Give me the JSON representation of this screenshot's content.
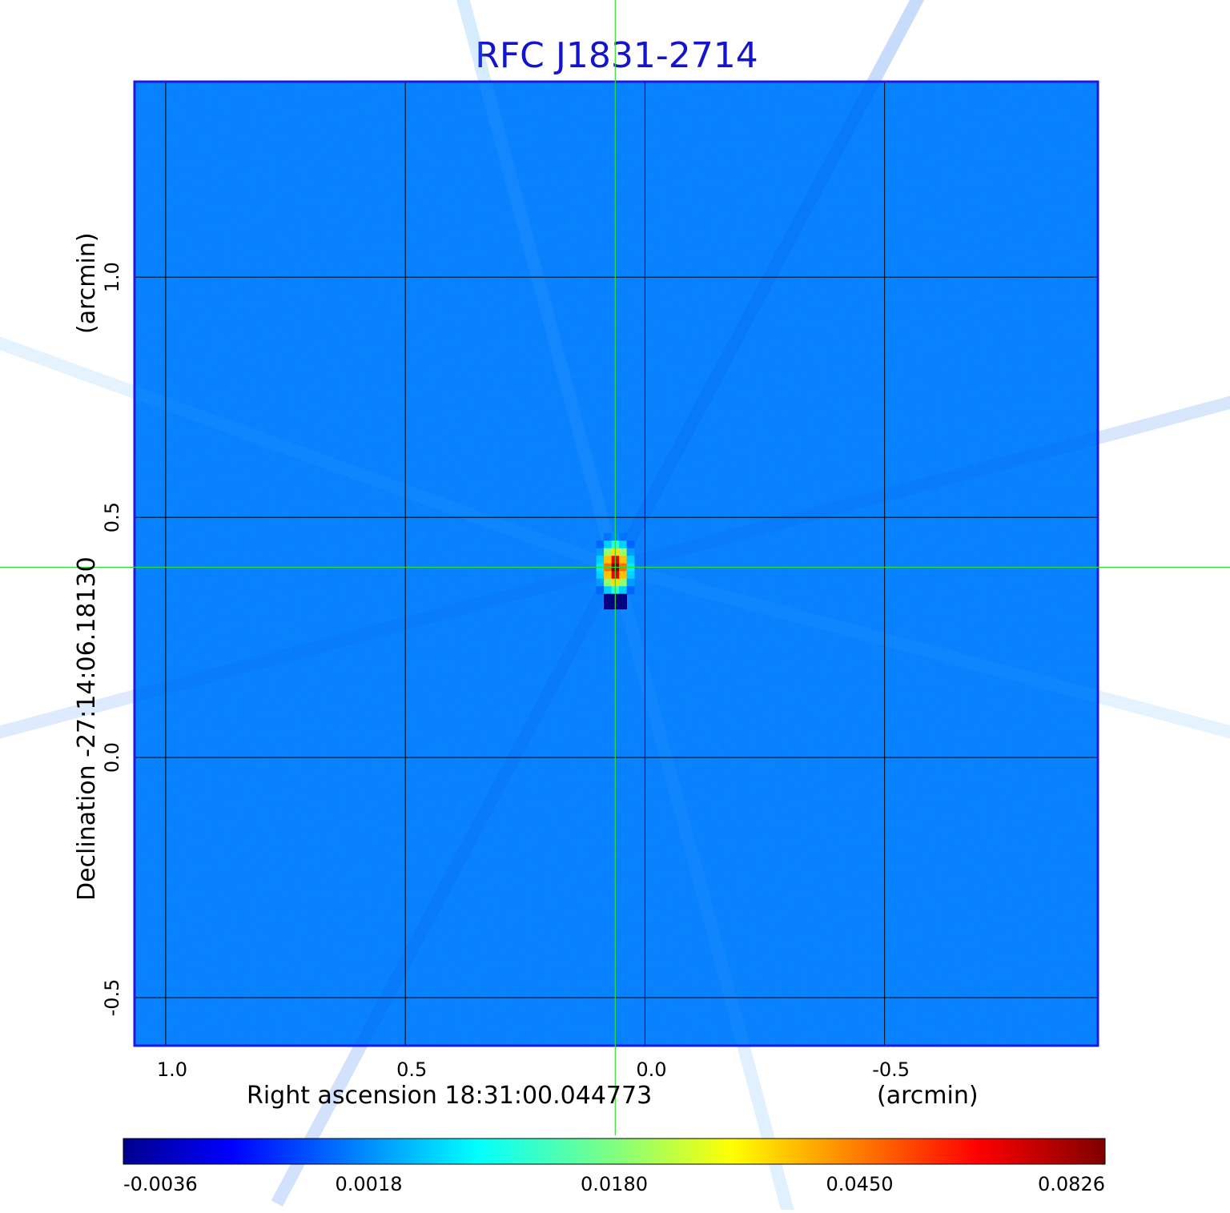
{
  "chart_data": {
    "type": "heatmap",
    "title": "RFC J1831-2714",
    "xlabel": "Right ascension  18:31:00.044773",
    "xunit": "(arcmin)",
    "ylabel": "Declination  -27:14:06.18130",
    "yunit": "(arcmin)",
    "x_ticks": [
      {
        "value": 1.0,
        "label": "1.0"
      },
      {
        "value": 0.5,
        "label": "0.5"
      },
      {
        "value": 0.0,
        "label": "0.0"
      },
      {
        "value": -0.5,
        "label": "-0.5"
      }
    ],
    "y_ticks": [
      {
        "value": 1.0,
        "label": "1.0"
      },
      {
        "value": 0.5,
        "label": "0.5"
      },
      {
        "value": 0.0,
        "label": "0.0"
      },
      {
        "value": -0.5,
        "label": "-0.5"
      }
    ],
    "xlim": [
      1.065,
      -0.945
    ],
    "ylim": [
      -0.6,
      1.407
    ],
    "grid": true,
    "crosshair": {
      "x": 0.062,
      "y": 0.396,
      "color": "#33dd33"
    },
    "colormap": "jet",
    "colorbar": {
      "min": -0.0036,
      "max": 0.0826,
      "tick_labels": [
        "-0.0036",
        "0.0018",
        "0.0180",
        "0.0450",
        "0.0826"
      ]
    },
    "background_level": 0.0005,
    "peak": {
      "x": 0.062,
      "y": 0.396,
      "value": 0.0826
    },
    "colors": {
      "title": "#1414cc",
      "frame": "#1a1ae6",
      "grid": "#000000"
    }
  }
}
